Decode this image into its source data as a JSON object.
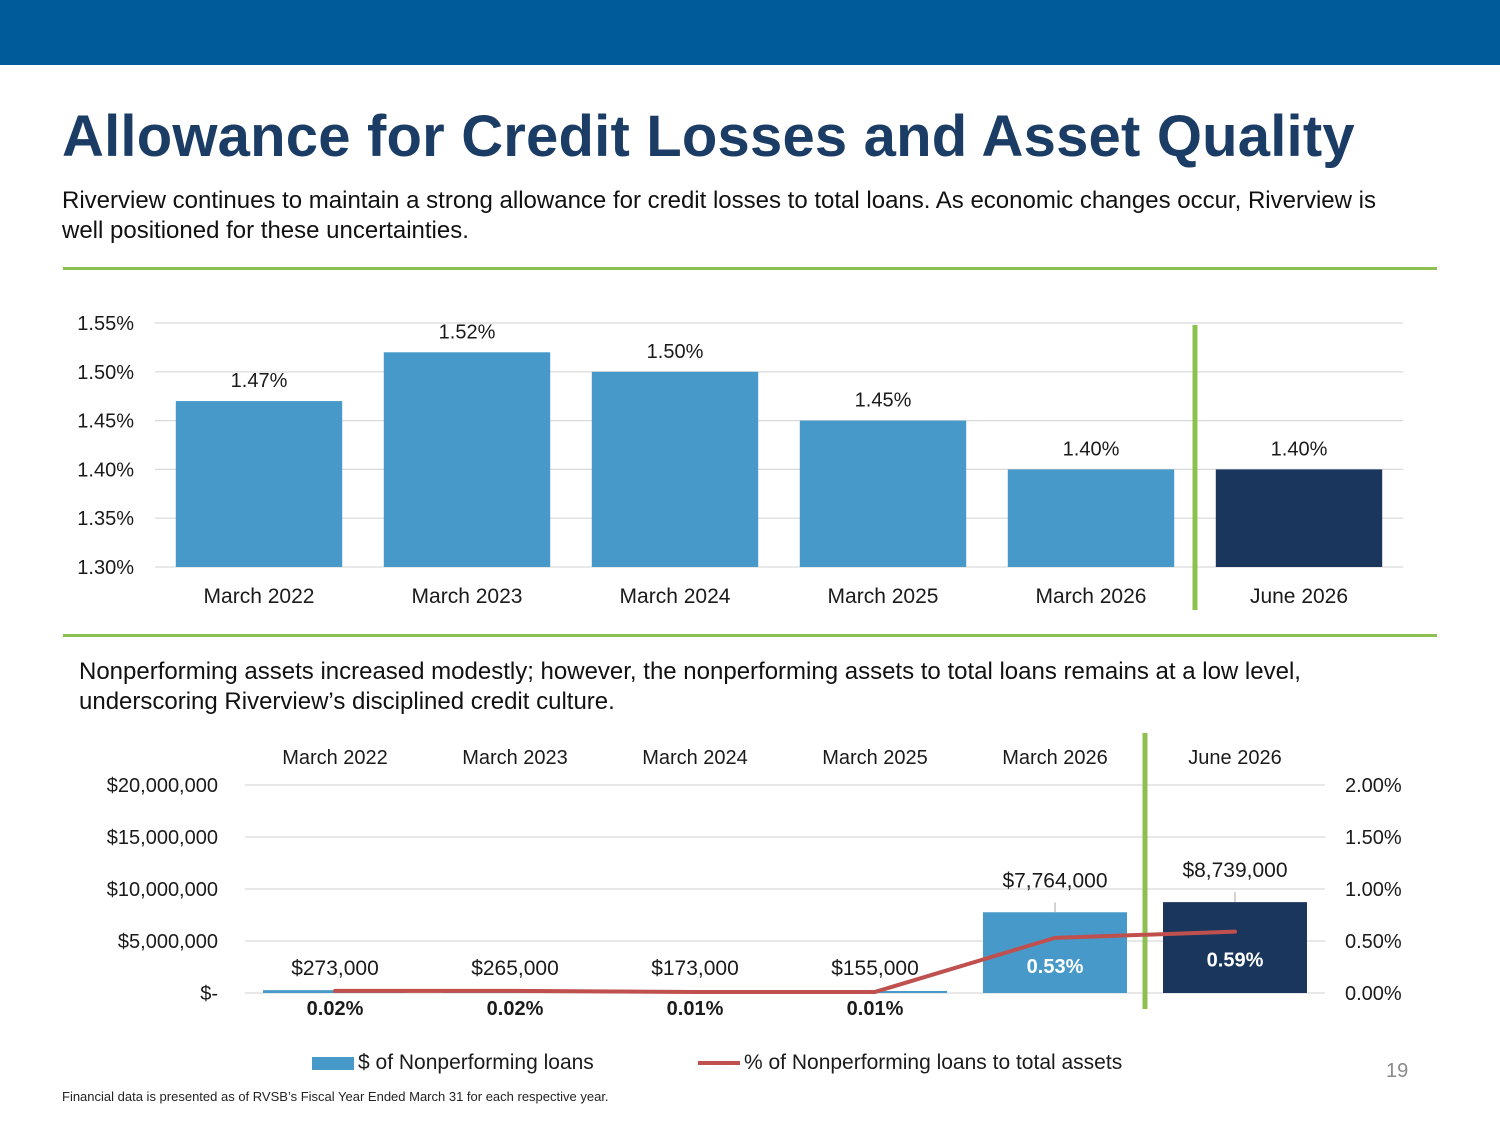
{
  "header": {
    "title": "Allowance for Credit Losses and Asset Quality",
    "intro": "Riverview continues to maintain a strong allowance for credit losses to total loans. As economic changes occur, Riverview is well positioned for these uncertainties."
  },
  "section2": {
    "intro": "Nonperforming assets increased modestly; however, the nonperforming assets to total loans remains at a low level, underscoring Riverview’s disciplined credit culture."
  },
  "legend": {
    "bar_label": "$ of Nonperforming loans",
    "line_label": "% of Nonperforming loans to total assets"
  },
  "footer": {
    "page_number": "19",
    "footnote": "Financial data is presented as of RVSB’s Fiscal Year Ended March 31 for each respective year."
  },
  "colors": {
    "top_band": "#005b9a",
    "title": "#1b3c65",
    "accent_rule": "#8cc152",
    "bar_primary": "#4799c9",
    "bar_highlight": "#1b365d",
    "line": "#c0504d",
    "gridline": "#d9d9d9"
  },
  "chart_data": [
    {
      "type": "bar",
      "categories": [
        "March 2022",
        "March 2023",
        "March 2024",
        "March 2025",
        "March 2026",
        "June 2026"
      ],
      "values": [
        1.47,
        1.52,
        1.5,
        1.45,
        1.4,
        1.4
      ],
      "data_labels": [
        "1.47%",
        "1.52%",
        "1.50%",
        "1.45%",
        "1.40%",
        "1.40%"
      ],
      "y_ticks": [
        "1.30%",
        "1.35%",
        "1.40%",
        "1.45%",
        "1.50%",
        "1.55%"
      ],
      "ylim": [
        1.3,
        1.55
      ],
      "highlight_index": 5,
      "divider_after_index": 4,
      "grid": true,
      "title": "",
      "xlabel": "",
      "ylabel": ""
    },
    {
      "type": "bar",
      "categories": [
        "March 2022",
        "March 2023",
        "March 2024",
        "March 2025",
        "March 2026",
        "June 2026"
      ],
      "series": [
        {
          "name": "$ of Nonperforming loans",
          "type": "bar",
          "axis": "left",
          "values": [
            273000,
            265000,
            173000,
            155000,
            7764000,
            8739000
          ],
          "data_labels": [
            "$273,000",
            "$265,000",
            "$173,000",
            "$155,000",
            "$7,764,000",
            "$8,739,000"
          ]
        },
        {
          "name": "% of Nonperforming loans to total assets",
          "type": "line",
          "axis": "right",
          "values": [
            0.02,
            0.02,
            0.01,
            0.01,
            0.53,
            0.59
          ],
          "data_labels": [
            "0.02%",
            "0.02%",
            "0.01%",
            "0.01%",
            "0.53%",
            "0.59%"
          ]
        }
      ],
      "y_left_ticks": [
        "$-",
        "$5,000,000",
        "$10,000,000",
        "$15,000,000",
        "$20,000,000"
      ],
      "y_right_ticks": [
        "0.00%",
        "0.50%",
        "1.00%",
        "1.50%",
        "2.00%"
      ],
      "ylim_left": [
        0,
        20000000
      ],
      "ylim_right": [
        0,
        2.0
      ],
      "highlight_index": 5,
      "divider_after_index": 4,
      "category_axis_position": "top",
      "legend_position": "bottom",
      "grid": true,
      "title": "",
      "xlabel": "",
      "ylabel": ""
    }
  ]
}
